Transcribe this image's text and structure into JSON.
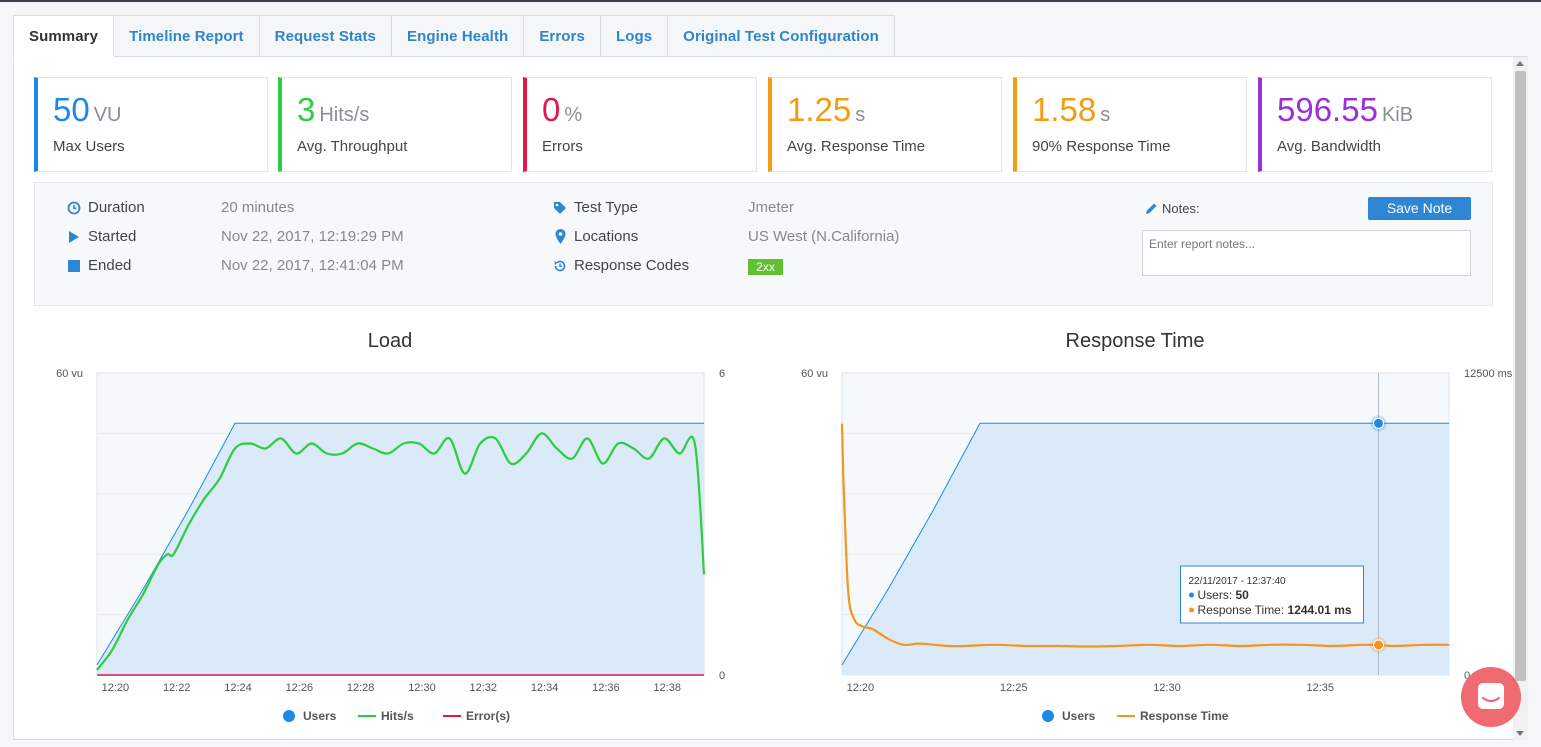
{
  "tabs": [
    {
      "label": "Summary",
      "active": true
    },
    {
      "label": "Timeline Report"
    },
    {
      "label": "Request Stats"
    },
    {
      "label": "Engine Health"
    },
    {
      "label": "Errors"
    },
    {
      "label": "Logs"
    },
    {
      "label": "Original Test Configuration"
    }
  ],
  "metrics": [
    {
      "value": "50",
      "unit": "VU",
      "label": "Max Users",
      "color": "#1e88e5"
    },
    {
      "value": "3",
      "unit": "Hits/s",
      "label": "Avg. Throughput",
      "color": "#2ecc40"
    },
    {
      "value": "0",
      "unit": "%",
      "label": "Errors",
      "color": "#e0194a"
    },
    {
      "value": "1.25",
      "unit": "s",
      "label": "Avg. Response Time",
      "color": "#f39c12"
    },
    {
      "value": "1.58",
      "unit": "s",
      "label": "90% Response Time",
      "color": "#f39c12"
    },
    {
      "value": "596.55",
      "unit": "KiB",
      "label": "Avg. Bandwidth",
      "color": "#9b30d9"
    }
  ],
  "info": {
    "duration_label": "Duration",
    "duration": "20 minutes",
    "started_label": "Started",
    "started": "Nov 22, 2017, 12:19:29 PM",
    "ended_label": "Ended",
    "ended": "Nov 22, 2017, 12:41:04 PM",
    "test_type_label": "Test Type",
    "test_type": "Jmeter",
    "locations_label": "Locations",
    "locations": "US West (N.California)",
    "response_codes_label": "Response Codes",
    "response_code_badge": "2xx",
    "notes_label": "Notes:",
    "save_note": "Save Note",
    "notes_placeholder": "Enter report notes..."
  },
  "chart_data": [
    {
      "type": "line",
      "title": "Load",
      "x_ticks": [
        "12:20",
        "12:22",
        "12:24",
        "12:26",
        "12:28",
        "12:30",
        "12:32",
        "12:34",
        "12:36",
        "12:38"
      ],
      "y_left_label": "60 vu",
      "y_left_range": [
        0,
        60
      ],
      "y_right_top": "6",
      "y_right_bottom": "0",
      "y_right_range": [
        0,
        6
      ],
      "grid": true,
      "legend_position": "bottom",
      "series": [
        {
          "name": "Users",
          "color": "#1e88e5",
          "axis": "left",
          "area": true,
          "x": [
            0,
            1.5,
            3,
            4.5,
            5,
            19.8
          ],
          "values": [
            2,
            17,
            33,
            50,
            50,
            50
          ]
        },
        {
          "name": "Hits/s",
          "color": "#2ecc40",
          "axis": "right",
          "x": [
            0,
            0.5,
            1,
            1.5,
            2,
            2.3,
            2.5,
            3,
            3.5,
            4,
            4.5,
            5,
            5.5,
            6,
            6.5,
            7,
            7.5,
            8,
            8.5,
            9,
            9.5,
            10,
            10.5,
            11,
            11.5,
            12,
            12.5,
            13,
            13.5,
            14,
            14.5,
            15,
            15.5,
            16,
            16.5,
            17,
            17.5,
            18,
            18.5,
            19,
            19.5,
            19.8
          ],
          "values": [
            0.1,
            0.5,
            1.1,
            1.6,
            2.2,
            2.4,
            2.4,
            3.0,
            3.5,
            3.9,
            4.5,
            4.6,
            4.5,
            4.7,
            4.4,
            4.6,
            4.4,
            4.4,
            4.6,
            4.5,
            4.4,
            4.6,
            4.6,
            4.4,
            4.7,
            4.0,
            4.6,
            4.7,
            4.2,
            4.4,
            4.8,
            4.5,
            4.3,
            4.7,
            4.2,
            4.6,
            4.5,
            4.3,
            4.7,
            4.4,
            4.6,
            2.0
          ]
        },
        {
          "name": "Error(s)",
          "color": "#e0194a",
          "axis": "right",
          "x": [
            0,
            19.8
          ],
          "values": [
            0,
            0
          ]
        }
      ]
    },
    {
      "type": "line",
      "title": "Response Time",
      "x_ticks": [
        "12:20",
        "12:25",
        "12:30",
        "12:35"
      ],
      "y_left_label": "60 vu",
      "y_left_range": [
        0,
        60
      ],
      "y_right_top": "12500 ms",
      "y_right_bottom": "0 ms",
      "y_right_range": [
        0,
        12500
      ],
      "grid": true,
      "legend_position": "bottom",
      "series": [
        {
          "name": "Users",
          "color": "#1e88e5",
          "axis": "left",
          "area": true,
          "x": [
            0,
            1.5,
            3,
            4.5,
            5,
            19.8
          ],
          "values": [
            2,
            17,
            33,
            50,
            50,
            50
          ]
        },
        {
          "name": "Response Time",
          "color": "#f7941d",
          "axis": "right",
          "x": [
            0,
            0.05,
            0.2,
            0.4,
            0.7,
            1.0,
            1.5,
            2,
            2.5,
            3,
            3.5,
            4,
            5,
            6,
            7,
            8,
            9,
            10,
            11,
            12,
            13,
            14,
            15,
            16,
            17,
            17.5,
            18,
            19,
            19.8
          ],
          "values": [
            10400,
            8000,
            3500,
            2300,
            2000,
            1900,
            1500,
            1250,
            1300,
            1250,
            1200,
            1200,
            1250,
            1200,
            1200,
            1180,
            1200,
            1250,
            1200,
            1250,
            1200,
            1250,
            1250,
            1200,
            1250,
            1244,
            1200,
            1250,
            1250
          ]
        }
      ],
      "tooltip": {
        "time": "22/11/2017 - 12:37:40",
        "users_label": "Users:",
        "users_value": "50",
        "rt_label": "Response Time:",
        "rt_value": "1244.01 ms",
        "x": 17.5
      }
    }
  ]
}
